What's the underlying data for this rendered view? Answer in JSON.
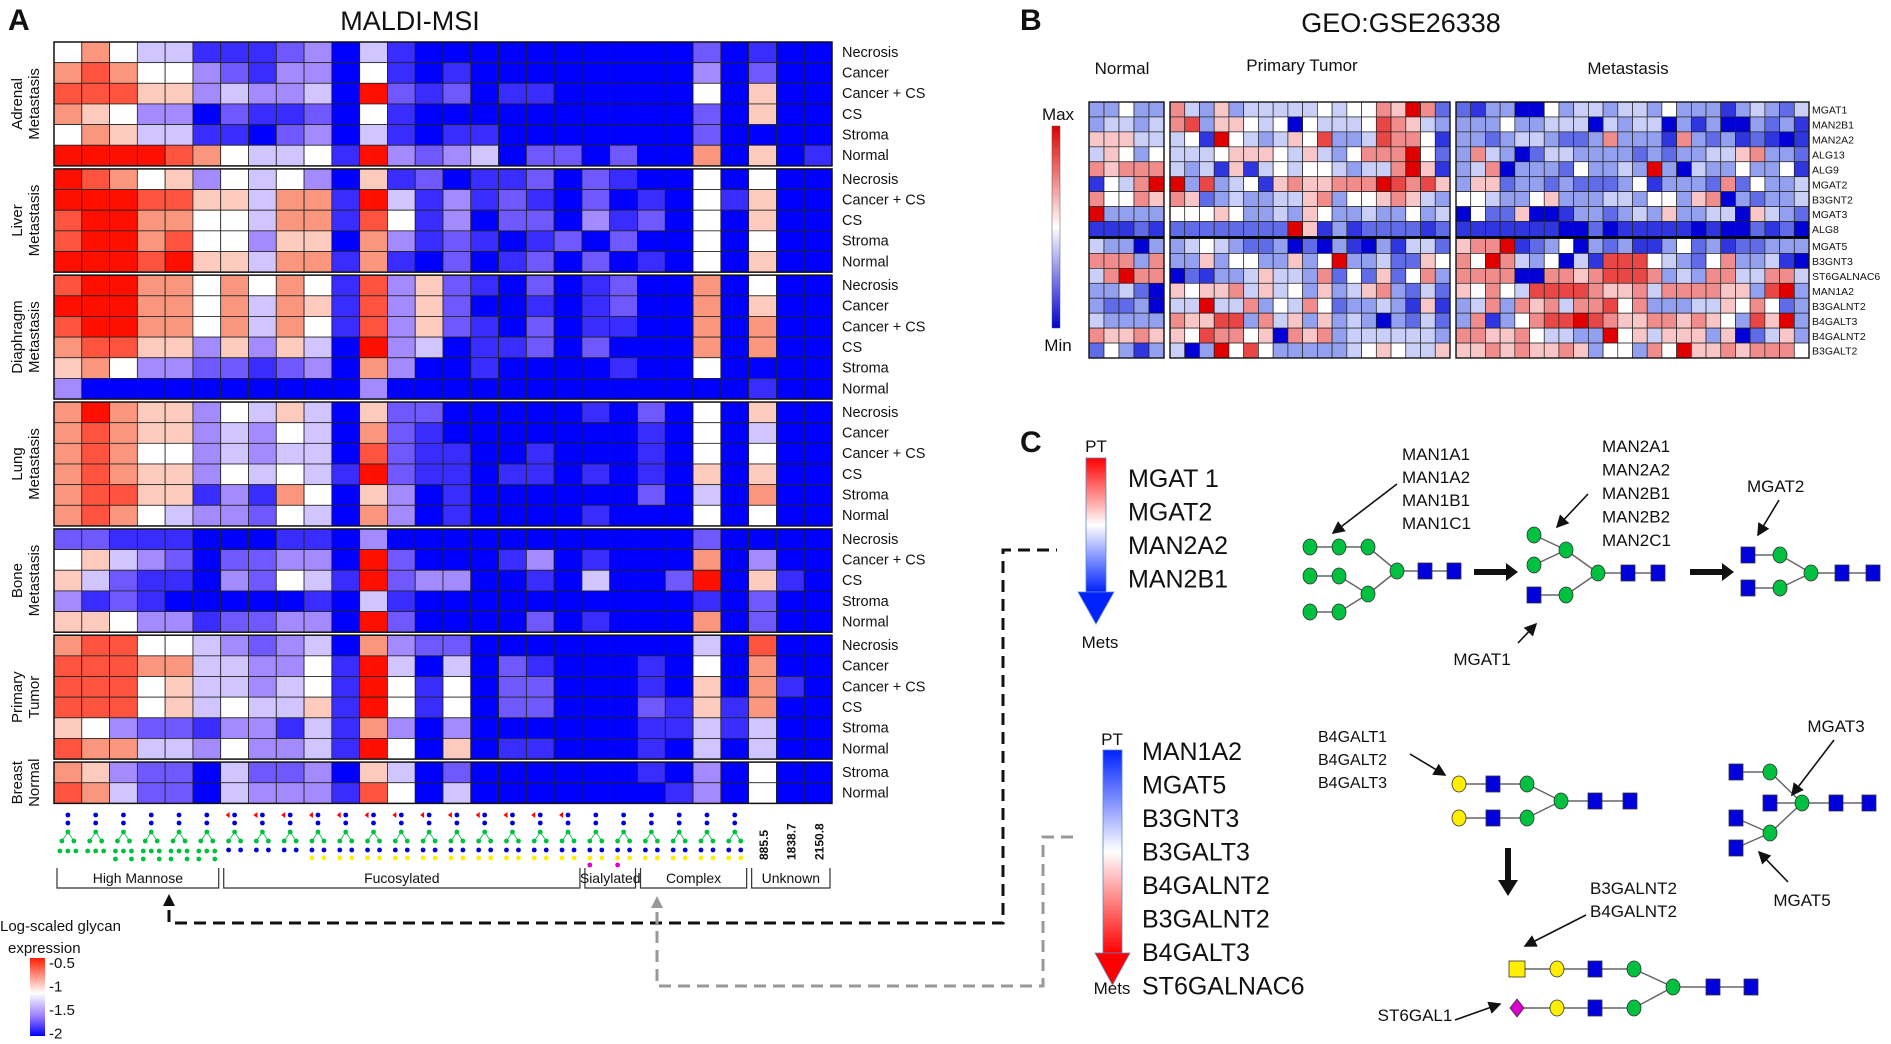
{
  "panels": {
    "a": {
      "letter": "A",
      "title": "MALDI-MSI"
    },
    "b": {
      "letter": "B",
      "title": "GEO:GSE26338"
    },
    "c": {
      "letter": "C"
    }
  },
  "chart_data": [
    {
      "type": "heatmap",
      "panel": "A",
      "title": "MALDI-MSI",
      "value_encoding": "digit 0-9 per column; 0 = -2 (blue), 5 = -1 (white), 9 = -0.5 (red)",
      "columns": 28,
      "groups": [
        {
          "label": "Adrenal Metastasis",
          "rows": [
            {
              "label": "Necrosis",
              "values": "5754411123041000000000020100"
            },
            {
              "label": "Cancer",
              "values": "7875532133051010000000030200"
            },
            {
              "label": "Cancer + CS",
              "values": "8886634334092120110000050600"
            },
            {
              "label": "CS",
              "values": "7653302112051000000000020600"
            },
            {
              "label": "Stroma",
              "values": "5764411023041011000000020000"
            },
            {
              "label": "Normal",
              "values": "9999875445193234022020070601"
            }
          ]
        },
        {
          "label": "Liver Metastasis",
          "rows": [
            {
              "label": "Necrosis",
              "values": "9875635453061201120210050500"
            },
            {
              "label": "Cancer + CS",
              "values": "9998866477194131210201051600"
            },
            {
              "label": "CS",
              "values": "8997755477185130220312050600"
            },
            {
              "label": "Stroma",
              "values": "8997855366073121012020050500"
            },
            {
              "label": "Normal",
              "values": "9998966477171020120201050600"
            }
          ]
        },
        {
          "label": "Diaphragm Metastasis",
          "rows": [
            {
              "label": "Necrosis",
              "values": "8997757575183621020120070500"
            },
            {
              "label": "Cancer",
              "values": "9997757476183620010120070600"
            },
            {
              "label": "Cancer + CS",
              "values": "8997757475183621020110070700"
            },
            {
              "label": "CS",
              "values": "7886636364093401120200070700"
            },
            {
              "label": "Stroma",
              "values": "6753322123073001000010050000"
            },
            {
              "label": "Normal",
              "values": "3000000000030000000000000100"
            }
          ]
        },
        {
          "label": "Lung Metastasis",
          "rows": [
            {
              "label": "Necrosis",
              "values": "7976635464062200000102050600"
            },
            {
              "label": "Cancer",
              "values": "7876634354072100000001050400"
            },
            {
              "label": "Cancer + CS",
              "values": "7875534344082110010001050500"
            },
            {
              "label": "CS",
              "values": "7876635454192110110101060600"
            },
            {
              "label": "Stroma",
              "values": "7886613175063010000002040700"
            },
            {
              "label": "Normal",
              "values": "7875433254073010000100050500"
            }
          ]
        },
        {
          "label": "Bone Metastasis",
          "rows": [
            {
              "label": "Necrosis",
              "values": "2211100011030000000000020000"
            },
            {
              "label": "Cancer + CS",
              "values": "5643202233092000130100070300"
            },
            {
              "label": "CS",
              "values": "6421103254192330010400290610"
            },
            {
              "label": "Stroma",
              "values": "3121000001041000000000010200"
            },
            {
              "label": "Normal",
              "values": "6653312233092000020100070200"
            }
          ]
        },
        {
          "label": "Primary Tumor",
          "rows": [
            {
              "label": "Necrosis",
              "values": "7885543234073220000000040800"
            },
            {
              "label": "Cancer",
              "values": "8887744335194040210001050700"
            },
            {
              "label": "Cancer + CS",
              "values": "8885644345195150220001060710"
            },
            {
              "label": "CS",
              "values": "8885645446195150220002161700"
            },
            {
              "label": "Stroma",
              "values": "6532213314173030000001141400"
            },
            {
              "label": "Normal",
              "values": "8774435334195060110001040400"
            }
          ]
        },
        {
          "label": "Breast Normal",
          "rows": [
            {
              "label": "Stroma",
              "values": "7632204223064020000001030500"
            },
            {
              "label": "Normal",
              "values": "8742204333185040000000130500"
            }
          ]
        }
      ],
      "column_classes": [
        {
          "label": "High Mannose",
          "from": 1,
          "to": 6
        },
        {
          "label": "Fucosylated",
          "from": 7,
          "to": 19
        },
        {
          "label": "Sialylated",
          "from": 20,
          "to": 21
        },
        {
          "label": "Complex",
          "from": 22,
          "to": 25
        },
        {
          "label": "Unknown",
          "from": 26,
          "to": 28
        }
      ],
      "unknown_masses": [
        "885.5",
        "1838.7",
        "2150.8"
      ],
      "legend": {
        "title_line1": "Log-scaled glycan",
        "title_line2": "expression",
        "ticks": [
          "-0.5",
          "-1",
          "-1.5",
          "-2"
        ],
        "colors": {
          "high": "#ff2000",
          "mid": "#ffffff",
          "low": "#0000ff"
        }
      }
    },
    {
      "type": "heatmap",
      "panel": "B",
      "title": "GEO:GSE26338",
      "value_encoding": "digit 0-9 per sample; 0 = Min (blue), 5 = mid (white), 9 = Max (red)",
      "sample_groups": [
        {
          "label": "Normal",
          "count": 5
        },
        {
          "label": "Primary Tumor",
          "count": 19
        },
        {
          "label": "Metastasis",
          "count": 24
        }
      ],
      "rows": [
        {
          "gene": "MGAT1",
          "values": "335337436344444545576972213300534434435333134324"
        },
        {
          "gene": "MAN2B1",
          "values": "344347836654505444587643333533444043440313003231"
        },
        {
          "gene": "MAN2A2",
          "values": "666444519543465833487751332344322373331732312101"
        },
        {
          "gene": "ALG13",
          "values": "465354445666546435777952374302443333232334467332"
        },
        {
          "gene": "ALG9",
          "values": "767774341614545543447961347033325334393043353351"
        },
        {
          "gene": "MGAT2",
          "values": "154799383451676677798786366233232223513332725334"
        },
        {
          "gene": "B3GNT2",
          "values": "755767623433446735567643554335633344355367032334"
        },
        {
          "gene": "MGAT3",
          "values": "933335556533436533433534052260013323436334406432"
        },
        {
          "gene": "ALG8",
          "values": "111212222222296131222212111111100201111101002120"
        },
        {
          "gene": "MGAT5",
          "values": "433033454322302031031442677912350323113523122333"
        },
        {
          "gene": "B3GNT3",
          "values": "777373363553363593342265759743504188854325733410"
        },
        {
          "gene": "ST6GALNAC6",
          "values": "479770213346443725262573777700776788873437744774"
        },
        {
          "gene": "MAN1A2",
          "values": "334206566746453634673242657548888766747777663893"
        },
        {
          "gene": "B3GALNT2",
          "values": "322304494473547523343161347376747785733344657523"
        },
        {
          "gene": "B4GALT3",
          "values": "433337668837463634303242371357889876677676538693"
        },
        {
          "gene": "B4GALNT2",
          "values": "766766587756076734444443776675443395646663602463"
        },
        {
          "gene": "B3GALT2",
          "values": "253134039585333334565446667676676355375966767775"
        }
      ],
      "row_split_after": "ALG8",
      "legend": {
        "max": "Max",
        "min": "Min",
        "colors": {
          "max": "#e00000",
          "mid": "#ffffff",
          "min": "#0000d0"
        }
      }
    }
  ],
  "panel_c": {
    "arrow1": {
      "top": "PT",
      "bottom": "Mets",
      "genes": [
        "MGAT 1",
        "MGAT2",
        "MAN2A2",
        "MAN2B1"
      ],
      "colors": {
        "top": "#ff0000",
        "bottom": "#0022ff"
      }
    },
    "arrow2": {
      "top": "PT",
      "bottom": "Mets",
      "genes": [
        "MAN1A2",
        "MGAT5",
        "B3GNT3",
        "B3GALT3",
        "B4GALNT2",
        "B3GALNT2",
        "B4GALT3",
        "ST6GALNAC6"
      ],
      "colors": {
        "top": "#0022ff",
        "bottom": "#ff0000"
      }
    },
    "enzymes": {
      "man1": [
        "MAN1A1",
        "MAN1A2",
        "MAN1B1",
        "MAN1C1"
      ],
      "man2": [
        "MAN2A1",
        "MAN2A2",
        "MAN2B1",
        "MAN2B2",
        "MAN2C1"
      ],
      "mgat2": "MGAT2",
      "mgat1": "MGAT1",
      "b4galt": [
        "B4GALT1",
        "B4GALT2",
        "B4GALT3"
      ],
      "mgat3": "MGAT3",
      "mgat5": "MGAT5",
      "galnt": [
        "B3GALNT2",
        "B4GALNT2"
      ],
      "st6gal1": "ST6GAL1"
    },
    "symbol_colors": {
      "mannose": "#00c040",
      "glcnac": "#0000dd",
      "galactose": "#ffee00",
      "sialic": "#dd00cc",
      "fucose": "#ff0000"
    }
  }
}
